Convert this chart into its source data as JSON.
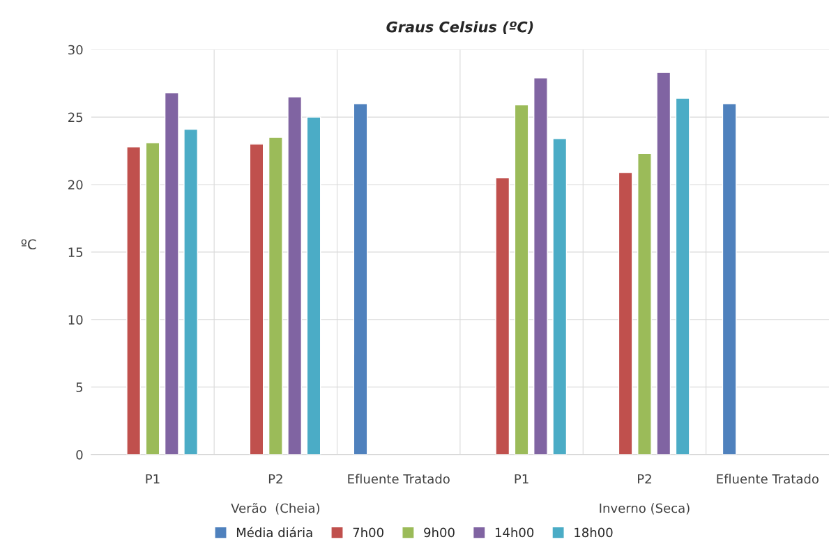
{
  "chart_data": {
    "type": "bar",
    "title": "Graus Celsius (ºC)",
    "ylabel": "ºC",
    "categories": [
      "P1",
      "P2",
      "Efluente Tratado",
      "P1",
      "P2",
      "Efluente Tratado"
    ],
    "series": [
      {
        "name": "Média diária",
        "color": "#4f81bd",
        "values": [
          null,
          null,
          26.0,
          null,
          null,
          26.0
        ]
      },
      {
        "name": "7h00",
        "color": "#c0504d",
        "values": [
          22.8,
          23.0,
          null,
          20.5,
          20.9,
          null
        ]
      },
      {
        "name": "9h00",
        "color": "#9bbb59",
        "values": [
          23.1,
          23.5,
          null,
          25.9,
          22.3,
          null
        ]
      },
      {
        "name": "14h00",
        "color": "#8064a2",
        "values": [
          26.8,
          26.5,
          null,
          27.9,
          28.3,
          null
        ]
      },
      {
        "name": "18h00",
        "color": "#4bacc6",
        "values": [
          24.1,
          25.0,
          null,
          23.4,
          26.4,
          null
        ]
      }
    ],
    "annotations": [
      "Verão  (Cheia)",
      "Inverno (Seca)"
    ],
    "ylim": [
      0,
      30
    ],
    "yticks": [
      0,
      5,
      10,
      15,
      20,
      25,
      30
    ],
    "grid": true,
    "legend": "bottom"
  }
}
